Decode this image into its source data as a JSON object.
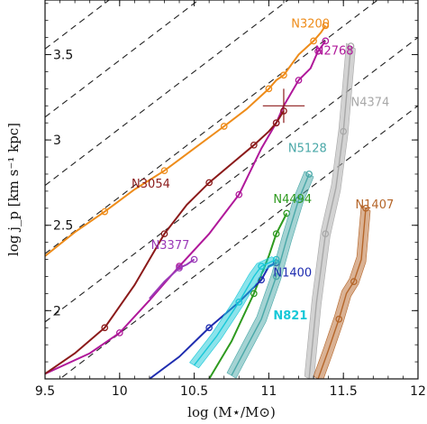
{
  "chart_data": {
    "type": "line",
    "xlabel": "log (M⋆/M⊙)",
    "ylabel": "log j_p [km s⁻¹ kpc]",
    "xlim": [
      9.5,
      12.0
    ],
    "ylim": [
      1.6,
      3.82
    ],
    "xticks": [
      "9.5",
      "10",
      "10.5",
      "11",
      "11.5",
      "12"
    ],
    "yticks": [
      "2",
      "2.5",
      "3",
      "3.5"
    ],
    "grid": false,
    "reference_lines": {
      "style": "dashed",
      "slope": 0.6667,
      "intercepts": [
        -4.8,
        -4.4,
        -4.0,
        -3.6,
        -3.2,
        -2.8,
        -2.4,
        -2.0
      ]
    },
    "marker": {
      "x": 11.1,
      "y": 3.2,
      "xerr": 0.14,
      "yerr": 0.1
    },
    "series": [
      {
        "name": "N3200",
        "color": "#ee8c1a",
        "band": false,
        "label_pos": [
          11.15,
          3.66
        ],
        "x": [
          9.5,
          9.7,
          9.9,
          10.1,
          10.3,
          10.5,
          10.7,
          10.85,
          11.0,
          11.05,
          11.1,
          11.2,
          11.3,
          11.35,
          11.38
        ],
        "y": [
          2.32,
          2.46,
          2.58,
          2.71,
          2.82,
          2.95,
          3.08,
          3.18,
          3.3,
          3.35,
          3.38,
          3.5,
          3.58,
          3.63,
          3.67
        ]
      },
      {
        "name": "N2768",
        "color": "#b0189a",
        "band": false,
        "label_pos": [
          11.31,
          3.5
        ],
        "x": [
          9.5,
          9.8,
          10.0,
          10.2,
          10.4,
          10.6,
          10.8,
          10.95,
          11.05,
          11.1,
          11.2,
          11.28,
          11.33,
          11.38
        ],
        "y": [
          1.63,
          1.75,
          1.87,
          2.06,
          2.26,
          2.45,
          2.68,
          2.95,
          3.1,
          3.2,
          3.35,
          3.42,
          3.52,
          3.58
        ]
      },
      {
        "name": "N3054",
        "color": "#8b1a1a",
        "band": false,
        "label_pos": [
          10.08,
          2.72
        ],
        "x": [
          9.5,
          9.7,
          9.9,
          10.1,
          10.3,
          10.45,
          10.6,
          10.75,
          10.9,
          11.0,
          11.05,
          11.1
        ],
        "y": [
          1.63,
          1.75,
          1.9,
          2.15,
          2.45,
          2.62,
          2.75,
          2.86,
          2.97,
          3.05,
          3.1,
          3.17
        ]
      },
      {
        "name": "N3377",
        "color": "#9b39b8",
        "band": false,
        "label_pos": [
          10.21,
          2.36
        ],
        "x": [
          10.2,
          10.3,
          10.4,
          10.45,
          10.5
        ],
        "y": [
          2.07,
          2.17,
          2.25,
          2.27,
          2.3
        ]
      },
      {
        "name": "N4494",
        "color": "#2e9a1f",
        "band": false,
        "label_pos": [
          11.03,
          2.63
        ],
        "x": [
          10.6,
          10.75,
          10.9,
          11.0,
          11.05,
          11.12
        ],
        "y": [
          1.6,
          1.82,
          2.1,
          2.32,
          2.45,
          2.57
        ]
      },
      {
        "name": "N1400",
        "color": "#1f2db0",
        "band": false,
        "label_pos": [
          11.03,
          2.2
        ],
        "x": [
          10.2,
          10.4,
          10.6,
          10.8,
          10.95,
          11.0,
          11.05
        ],
        "y": [
          1.6,
          1.73,
          1.9,
          2.05,
          2.18,
          2.26,
          2.28
        ]
      },
      {
        "name": "N821",
        "color": "#18c8d8",
        "band": true,
        "label_pos": [
          11.03,
          1.95
        ],
        "x": [
          10.5,
          10.65,
          10.8,
          10.9,
          10.95,
          11.0,
          11.05
        ],
        "y": [
          1.68,
          1.85,
          2.05,
          2.2,
          2.26,
          2.28,
          2.3
        ]
      },
      {
        "name": "N5128",
        "color": "#4aa8a8",
        "band": true,
        "label_pos": [
          11.13,
          2.93
        ],
        "x": [
          10.75,
          10.95,
          11.05,
          11.12,
          11.2,
          11.27
        ],
        "y": [
          1.62,
          1.95,
          2.2,
          2.42,
          2.65,
          2.8
        ]
      },
      {
        "name": "N4374",
        "color": "#a8a8a8",
        "band": true,
        "label_pos": [
          11.55,
          3.2
        ],
        "x": [
          11.27,
          11.32,
          11.38,
          11.45,
          11.5,
          11.55
        ],
        "y": [
          1.6,
          2.05,
          2.45,
          2.72,
          3.05,
          3.55
        ]
      },
      {
        "name": "N1407",
        "color": "#b5662a",
        "band": true,
        "label_pos": [
          11.58,
          2.6
        ],
        "x": [
          11.33,
          11.4,
          11.47,
          11.52,
          11.57,
          11.62,
          11.65
        ],
        "y": [
          1.6,
          1.77,
          1.95,
          2.1,
          2.17,
          2.3,
          2.6
        ]
      }
    ]
  }
}
